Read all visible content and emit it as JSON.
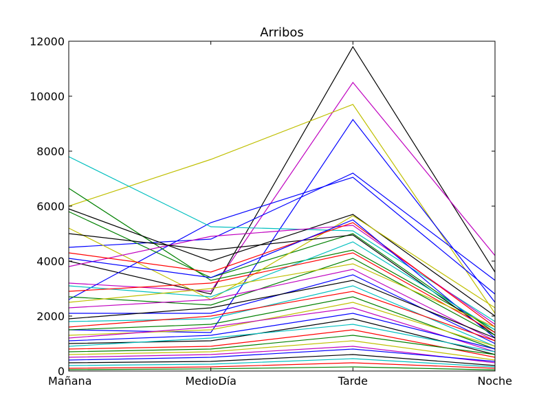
{
  "chart_data": {
    "type": "line",
    "title": "Arribos",
    "xlabel": "",
    "ylabel": "",
    "categories": [
      "Mañana",
      "MedioDía",
      "Tarde",
      "Noche"
    ],
    "y_ticks": [
      "0",
      "2000",
      "4000",
      "6000",
      "8000",
      "10000",
      "12000"
    ],
    "ylim": [
      0,
      12000
    ],
    "grid": false,
    "legend": "none",
    "palette": [
      "#0000ff",
      "#008000",
      "#ff0000",
      "#00bfbf",
      "#bf00bf",
      "#bfbf00",
      "#000000"
    ],
    "series": [
      {
        "color": "#000000",
        "values": [
          4000,
          2800,
          11800,
          3600
        ]
      },
      {
        "color": "#bf00bf",
        "values": [
          3200,
          2900,
          10500,
          4200
        ]
      },
      {
        "color": "#bfbf00",
        "values": [
          6000,
          7700,
          9700,
          2100
        ]
      },
      {
        "color": "#0000ff",
        "values": [
          1500,
          1400,
          9150,
          2500
        ]
      },
      {
        "color": "#0000ff",
        "values": [
          4500,
          4800,
          7200,
          3300
        ]
      },
      {
        "color": "#0000ff",
        "values": [
          2600,
          5400,
          7050,
          2800
        ]
      },
      {
        "color": "#00bfbf",
        "values": [
          7800,
          5250,
          5100,
          1800
        ]
      },
      {
        "color": "#008000",
        "values": [
          6650,
          3300,
          4400,
          1500
        ]
      },
      {
        "color": "#000000",
        "values": [
          5900,
          4000,
          5700,
          2000
        ]
      },
      {
        "color": "#008000",
        "values": [
          5800,
          3400,
          5000,
          1400
        ]
      },
      {
        "color": "#bfbf00",
        "values": [
          5200,
          2600,
          5650,
          2300
        ]
      },
      {
        "color": "#bf00bf",
        "values": [
          3800,
          4900,
          5300,
          1700
        ]
      },
      {
        "color": "#000000",
        "values": [
          5000,
          4400,
          4950,
          1300
        ]
      },
      {
        "color": "#ff0000",
        "values": [
          4300,
          3600,
          5400,
          1600
        ]
      },
      {
        "color": "#0000ff",
        "values": [
          4100,
          3400,
          5500,
          1200
        ]
      },
      {
        "color": "#00bfbf",
        "values": [
          3100,
          2700,
          4700,
          1500
        ]
      },
      {
        "color": "#ff0000",
        "values": [
          2900,
          3200,
          4300,
          1400
        ]
      },
      {
        "color": "#008000",
        "values": [
          2700,
          2400,
          4100,
          1300
        ]
      },
      {
        "color": "#bfbf00",
        "values": [
          2500,
          3000,
          3900,
          1600
        ]
      },
      {
        "color": "#bf00bf",
        "values": [
          2300,
          2600,
          3700,
          1100
        ]
      },
      {
        "color": "#0000ff",
        "values": [
          2100,
          2100,
          3500,
          1000
        ]
      },
      {
        "color": "#000000",
        "values": [
          1900,
          2300,
          3300,
          1200
        ]
      },
      {
        "color": "#00bfbf",
        "values": [
          1800,
          1900,
          3100,
          900
        ]
      },
      {
        "color": "#ff0000",
        "values": [
          1600,
          2000,
          2900,
          1100
        ]
      },
      {
        "color": "#008000",
        "values": [
          1500,
          1700,
          2700,
          800
        ]
      },
      {
        "color": "#bfbf00",
        "values": [
          1300,
          1500,
          2500,
          900
        ]
      },
      {
        "color": "#bf00bf",
        "values": [
          1200,
          1600,
          2300,
          700
        ]
      },
      {
        "color": "#0000ff",
        "values": [
          1100,
          1300,
          2100,
          800
        ]
      },
      {
        "color": "#000000",
        "values": [
          1000,
          1100,
          1900,
          600
        ]
      },
      {
        "color": "#00bfbf",
        "values": [
          900,
          1200,
          1700,
          700
        ]
      },
      {
        "color": "#ff0000",
        "values": [
          800,
          900,
          1500,
          500
        ]
      },
      {
        "color": "#008000",
        "values": [
          700,
          800,
          1300,
          600
        ]
      },
      {
        "color": "#bfbf00",
        "values": [
          600,
          700,
          1100,
          400
        ]
      },
      {
        "color": "#bf00bf",
        "values": [
          500,
          600,
          900,
          300
        ]
      },
      {
        "color": "#0000ff",
        "values": [
          400,
          500,
          800,
          350
        ]
      },
      {
        "color": "#000000",
        "values": [
          300,
          350,
          600,
          200
        ]
      },
      {
        "color": "#00bfbf",
        "values": [
          200,
          250,
          450,
          150
        ]
      },
      {
        "color": "#ff0000",
        "values": [
          100,
          150,
          300,
          100
        ]
      },
      {
        "color": "#008000",
        "values": [
          50,
          80,
          150,
          40
        ]
      }
    ]
  }
}
